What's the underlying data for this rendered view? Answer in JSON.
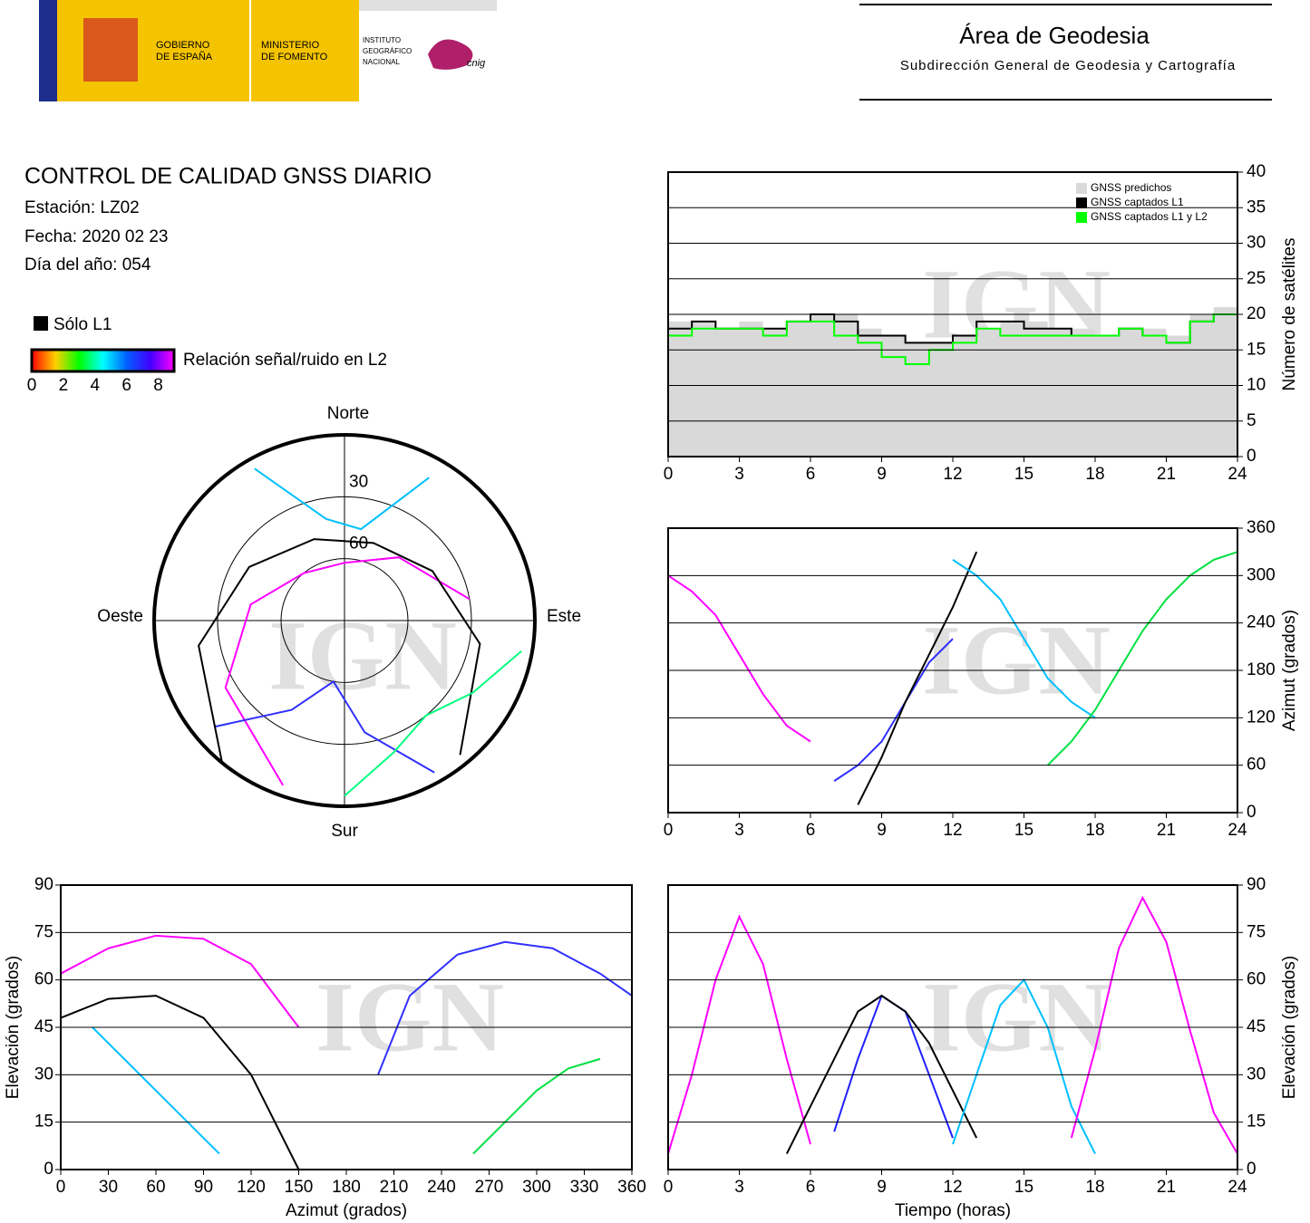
{
  "header": {
    "logos": [
      [
        "GOBIERNO",
        "DE ESPAÑA"
      ],
      [
        "MINISTERIO",
        "DE FOMENTO"
      ],
      [
        "INSTITUTO",
        "GEOGRÁFICO",
        "NACIONAL"
      ],
      [
        "cnig"
      ]
    ],
    "title": "Área de Geodesia",
    "subtitle": "Subdirección General de Geodesia y Cartografía"
  },
  "report": {
    "title": "CONTROL DE CALIDAD GNSS DIARIO",
    "station": "Estación: LZ02",
    "date": "Fecha: 2020 02 23",
    "doy": "Día del año: 054"
  },
  "legend": {
    "l1_only": "Sólo L1",
    "l1_color": "#000000",
    "snr_label": "Relación señal/ruido en L2",
    "snr_ticks": [
      0,
      2,
      4,
      6,
      8
    ],
    "snr_range": [
      0,
      9
    ],
    "snr_colors": [
      "#ff0000",
      "#ffd000",
      "#00ff00",
      "#00ffff",
      "#0060ff",
      "#4000ff",
      "#ff00ff"
    ]
  },
  "chart_data": [
    {
      "type": "line",
      "step": true,
      "watermark": "IGN",
      "yaxis_side": "right",
      "grid": true,
      "legend": "upper right",
      "ylabel": "Número de satélites",
      "x": [
        0,
        1,
        2,
        3,
        4,
        5,
        6,
        7,
        8,
        9,
        10,
        11,
        12,
        13,
        14,
        15,
        16,
        17,
        18,
        19,
        20,
        21,
        22,
        23,
        24
      ],
      "xlim": [
        0,
        24
      ],
      "xticks": [
        0,
        3,
        6,
        9,
        12,
        15,
        18,
        21,
        24
      ],
      "ylim": [
        0,
        40
      ],
      "yticks": [
        0,
        5,
        10,
        15,
        20,
        25,
        30,
        35,
        40
      ],
      "series": [
        {
          "name": "GNSS predichos",
          "color": "#d9d9d9",
          "fill": true,
          "values": [
            19,
            19,
            18,
            19,
            18,
            19,
            20,
            20,
            18,
            17,
            16,
            16,
            17,
            18,
            19,
            19,
            18,
            18,
            17,
            18,
            18,
            17,
            20,
            21,
            19
          ]
        },
        {
          "name": "GNSS captados L1",
          "color": "#000000",
          "values": [
            18,
            19,
            18,
            18,
            18,
            19,
            20,
            19,
            17,
            17,
            16,
            16,
            17,
            19,
            19,
            18,
            18,
            17,
            17,
            18,
            17,
            16,
            19,
            20,
            18
          ]
        },
        {
          "name": "GNSS captados L1 y L2",
          "color": "#00ff00",
          "values": [
            17,
            18,
            18,
            18,
            17,
            19,
            19,
            17,
            16,
            14,
            13,
            15,
            16,
            18,
            17,
            17,
            17,
            17,
            17,
            18,
            17,
            16,
            19,
            20,
            18
          ]
        }
      ]
    },
    {
      "type": "line",
      "watermark": "IGN",
      "yaxis_side": "right",
      "grid": true,
      "ylabel": "Azimut (grados)",
      "x": [
        0,
        1,
        2,
        3,
        4,
        5,
        6,
        7,
        8,
        9,
        10,
        11,
        12,
        13,
        14,
        15,
        16,
        17,
        18,
        19,
        20,
        21,
        22,
        23,
        24
      ],
      "xlim": [
        0,
        24
      ],
      "xticks": [
        0,
        3,
        6,
        9,
        12,
        15,
        18,
        21,
        24
      ],
      "ylim": [
        0,
        360
      ],
      "yticks": [
        0,
        60,
        120,
        180,
        240,
        300,
        360
      ],
      "series": [
        {
          "color": "#ff00ff",
          "values": [
            300,
            280,
            250,
            200,
            150,
            110,
            90,
            null,
            null,
            null,
            null,
            null,
            null,
            null,
            null,
            null,
            null,
            null,
            null,
            null,
            null,
            null,
            null,
            null,
            null
          ]
        },
        {
          "color": "#3030ff",
          "values": [
            null,
            null,
            null,
            null,
            null,
            null,
            null,
            40,
            60,
            90,
            140,
            190,
            220,
            null,
            null,
            null,
            null,
            null,
            null,
            null,
            null,
            null,
            null,
            null,
            null
          ]
        },
        {
          "color": "#000000",
          "values": [
            null,
            null,
            null,
            null,
            null,
            null,
            null,
            null,
            10,
            70,
            140,
            200,
            260,
            330,
            null,
            null,
            null,
            null,
            null,
            null,
            null,
            null,
            null,
            null,
            null
          ]
        },
        {
          "color": "#00c0ff",
          "values": [
            null,
            null,
            null,
            null,
            null,
            null,
            null,
            null,
            null,
            null,
            null,
            null,
            320,
            300,
            270,
            220,
            170,
            140,
            120,
            null,
            null,
            null,
            null,
            null,
            null
          ]
        },
        {
          "color": "#00e040",
          "values": [
            null,
            null,
            null,
            null,
            null,
            null,
            null,
            null,
            null,
            null,
            null,
            null,
            null,
            null,
            null,
            null,
            60,
            90,
            130,
            180,
            230,
            270,
            300,
            320,
            330
          ]
        }
      ]
    },
    {
      "type": "line",
      "watermark": "IGN",
      "yaxis_side": "left",
      "grid": true,
      "xlabel": "Azimut (grados)",
      "ylabel": "Elevación (grados)",
      "xlim": [
        0,
        360
      ],
      "xticks": [
        0,
        30,
        60,
        90,
        120,
        150,
        180,
        210,
        240,
        270,
        300,
        330,
        360
      ],
      "ylim": [
        0,
        90
      ],
      "yticks": [
        0,
        15,
        30,
        45,
        60,
        75,
        90
      ],
      "series": [
        {
          "color": "#ff00ff",
          "x": [
            0,
            30,
            60,
            90,
            120,
            150
          ],
          "values": [
            62,
            70,
            74,
            73,
            65,
            45
          ]
        },
        {
          "color": "#3030ff",
          "x": [
            200,
            220,
            250,
            280,
            310,
            340,
            360
          ],
          "values": [
            30,
            55,
            68,
            72,
            70,
            62,
            55
          ]
        },
        {
          "color": "#000000",
          "x": [
            0,
            30,
            60,
            90,
            120,
            150
          ],
          "values": [
            48,
            54,
            55,
            48,
            30,
            0
          ]
        },
        {
          "color": "#00c0ff",
          "x": [
            20,
            40,
            60,
            80,
            100
          ],
          "values": [
            45,
            35,
            25,
            15,
            5
          ]
        },
        {
          "color": "#00e040",
          "x": [
            260,
            280,
            300,
            320,
            340
          ],
          "values": [
            5,
            15,
            25,
            32,
            35
          ]
        }
      ]
    },
    {
      "type": "line",
      "watermark": "IGN",
      "yaxis_side": "right",
      "grid": true,
      "xlabel": "Tiempo (horas)",
      "ylabel": "Elevación (grados)",
      "x": [
        0,
        1,
        2,
        3,
        4,
        5,
        6,
        7,
        8,
        9,
        10,
        11,
        12,
        13,
        14,
        15,
        16,
        17,
        18,
        19,
        20,
        21,
        22,
        23,
        24
      ],
      "xlim": [
        0,
        24
      ],
      "xticks": [
        0,
        3,
        6,
        9,
        12,
        15,
        18,
        21,
        24
      ],
      "ylim": [
        0,
        90
      ],
      "yticks": [
        0,
        15,
        30,
        45,
        60,
        75,
        90
      ],
      "series": [
        {
          "color": "#ff00ff",
          "values": [
            5,
            30,
            60,
            80,
            65,
            35,
            8,
            null,
            null,
            null,
            null,
            null,
            null,
            null,
            null,
            null,
            null,
            null,
            null,
            null,
            null,
            null,
            null,
            null,
            null
          ]
        },
        {
          "color": "#2020ff",
          "values": [
            null,
            null,
            null,
            null,
            null,
            null,
            null,
            12,
            35,
            55,
            50,
            30,
            10,
            null,
            null,
            null,
            null,
            null,
            null,
            null,
            null,
            null,
            null,
            null,
            null
          ]
        },
        {
          "color": "#000000",
          "values": [
            null,
            null,
            null,
            null,
            null,
            5,
            20,
            35,
            50,
            55,
            50,
            40,
            25,
            10,
            null,
            null,
            null,
            null,
            null,
            null,
            null,
            null,
            null,
            null,
            null
          ]
        },
        {
          "color": "#00c0ff",
          "values": [
            null,
            null,
            null,
            null,
            null,
            null,
            null,
            null,
            null,
            null,
            null,
            null,
            8,
            30,
            52,
            60,
            45,
            20,
            5,
            null,
            null,
            null,
            null,
            null,
            null
          ]
        },
        {
          "color": "#ff00ff",
          "values": [
            null,
            null,
            null,
            null,
            null,
            null,
            null,
            null,
            null,
            null,
            null,
            null,
            null,
            null,
            null,
            null,
            null,
            10,
            38,
            70,
            86,
            72,
            44,
            18,
            5
          ]
        }
      ]
    },
    {
      "type": "polar",
      "watermark": "IGN",
      "north": "Norte",
      "south": "Sur",
      "east": "Este",
      "west": "Oeste",
      "rlim": [
        90,
        0
      ],
      "rings": [
        30,
        60
      ],
      "series": [
        {
          "color": "#ff00ff",
          "azimuth": [
            200,
            240,
            280,
            320,
            0,
            40,
            80
          ],
          "elevation": [
            5,
            25,
            45,
            60,
            62,
            50,
            30
          ]
        },
        {
          "color": "#3030ff",
          "azimuth": [
            150,
            170,
            190,
            210,
            230
          ],
          "elevation": [
            5,
            35,
            60,
            40,
            10
          ]
        },
        {
          "color": "#000000",
          "azimuth": [
            220,
            260,
            300,
            340,
            20,
            60,
            100,
            140
          ],
          "elevation": [
            0,
            20,
            38,
            48,
            50,
            42,
            25,
            5
          ]
        },
        {
          "color": "#00c0ff",
          "azimuth": [
            330,
            350,
            10,
            30
          ],
          "elevation": [
            5,
            40,
            45,
            10
          ]
        },
        {
          "color": "#00ff80",
          "azimuth": [
            100,
            120,
            140,
            160,
            180
          ],
          "elevation": [
            5,
            20,
            30,
            22,
            5
          ]
        }
      ]
    }
  ]
}
